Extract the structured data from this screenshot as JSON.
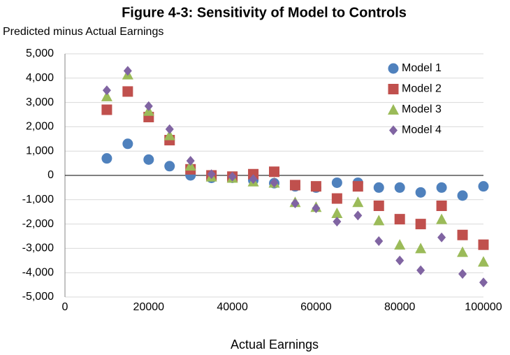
{
  "chart_data": {
    "type": "scatter",
    "title": "Figure 4-3: Sensitivity of Model to Controls",
    "y_label": "Predicted minus Actual Earnings",
    "x_label": "Actual Earnings",
    "x": [
      10000,
      15000,
      20000,
      25000,
      30000,
      35000,
      40000,
      45000,
      50000,
      55000,
      60000,
      65000,
      70000,
      75000,
      80000,
      85000,
      90000,
      95000,
      100000
    ],
    "series": [
      {
        "name": "Model 1",
        "color": "#4f81bd",
        "marker": "circle",
        "values": [
          700,
          1300,
          650,
          380,
          0,
          -100,
          -100,
          -200,
          -320,
          -450,
          -500,
          -300,
          -300,
          -500,
          -500,
          -700,
          -500,
          -830,
          -450
        ]
      },
      {
        "name": "Model 2",
        "color": "#c0504d",
        "marker": "square",
        "values": [
          2700,
          3450,
          2400,
          1450,
          250,
          0,
          -50,
          50,
          150,
          -400,
          -450,
          -950,
          -450,
          -1250,
          -1800,
          -2000,
          -1250,
          -2450,
          -2850
        ]
      },
      {
        "name": "Model 3",
        "color": "#9bbb59",
        "marker": "triangle",
        "values": [
          3250,
          4150,
          2650,
          1650,
          400,
          -50,
          -100,
          -250,
          -300,
          -1100,
          -1300,
          -1550,
          -1100,
          -1850,
          -2850,
          -3000,
          -1800,
          -3150,
          -3550
        ]
      },
      {
        "name": "Model 4",
        "color": "#8064a2",
        "marker": "diamond",
        "values": [
          3500,
          4300,
          2850,
          1900,
          600,
          50,
          -50,
          -150,
          -300,
          -1150,
          -1350,
          -1900,
          -1650,
          -2700,
          -3500,
          -3900,
          -2550,
          -4050,
          -4400
        ]
      }
    ],
    "xlim": [
      0,
      100000
    ],
    "xticks": [
      0,
      20000,
      40000,
      60000,
      80000,
      100000
    ],
    "ylim": [
      -5000,
      5000
    ],
    "yticks": [
      {
        "value": -5000,
        "label": "-5,000"
      },
      {
        "value": -4000,
        "label": "-4,000"
      },
      {
        "value": -3000,
        "label": "-3,000"
      },
      {
        "value": -2000,
        "label": "-2,000"
      },
      {
        "value": -1000,
        "label": "-1,000"
      },
      0,
      {
        "value": 1000,
        "label": "1,000"
      },
      {
        "value": 2000,
        "label": "2,000"
      },
      {
        "value": 3000,
        "label": "3,000"
      },
      {
        "value": 4000,
        "label": "4,000"
      },
      {
        "value": 5000,
        "label": "5,000"
      }
    ],
    "grid": true,
    "legend": "top-right"
  }
}
